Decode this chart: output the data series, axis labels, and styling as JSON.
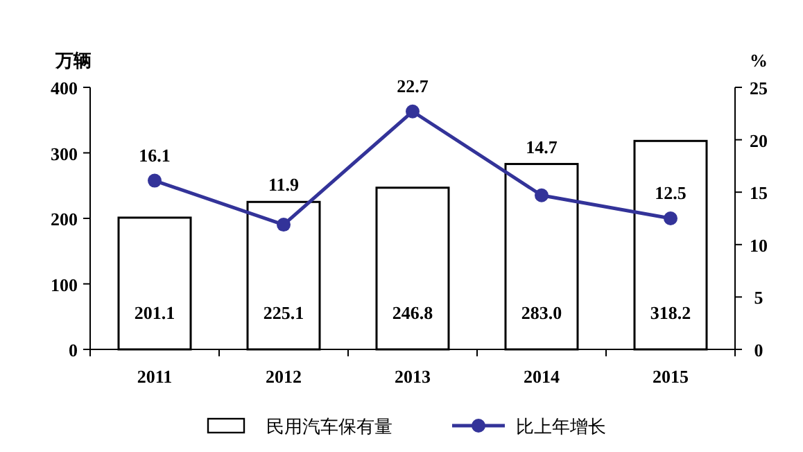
{
  "chart_data": {
    "type": "bar",
    "categories": [
      "2011",
      "2012",
      "2013",
      "2014",
      "2015"
    ],
    "ylabel": "万辆",
    "y2label": "%",
    "ylim": [
      0,
      400
    ],
    "yticks": [
      0,
      100,
      200,
      300,
      400
    ],
    "y2lim": [
      0,
      25
    ],
    "y2ticks": [
      0,
      5,
      10,
      15,
      20,
      25
    ],
    "legend": "bottom",
    "series": [
      {
        "name": "民用汽车保有量",
        "type": "bar",
        "color": "#ffffff",
        "values": [
          201.1,
          225.1,
          246.8,
          283.0,
          318.2
        ],
        "value_labels": [
          "201.1",
          "225.1",
          "246.8",
          "283.0",
          "318.2"
        ]
      },
      {
        "name": "比上年增长",
        "type": "line",
        "axis": "y2",
        "marker": "circle",
        "color": "#333399",
        "values": [
          16.1,
          11.9,
          22.7,
          14.7,
          12.5
        ],
        "value_labels": [
          "16.1",
          "11.9",
          "22.7",
          "14.7",
          "12.5"
        ]
      }
    ]
  }
}
